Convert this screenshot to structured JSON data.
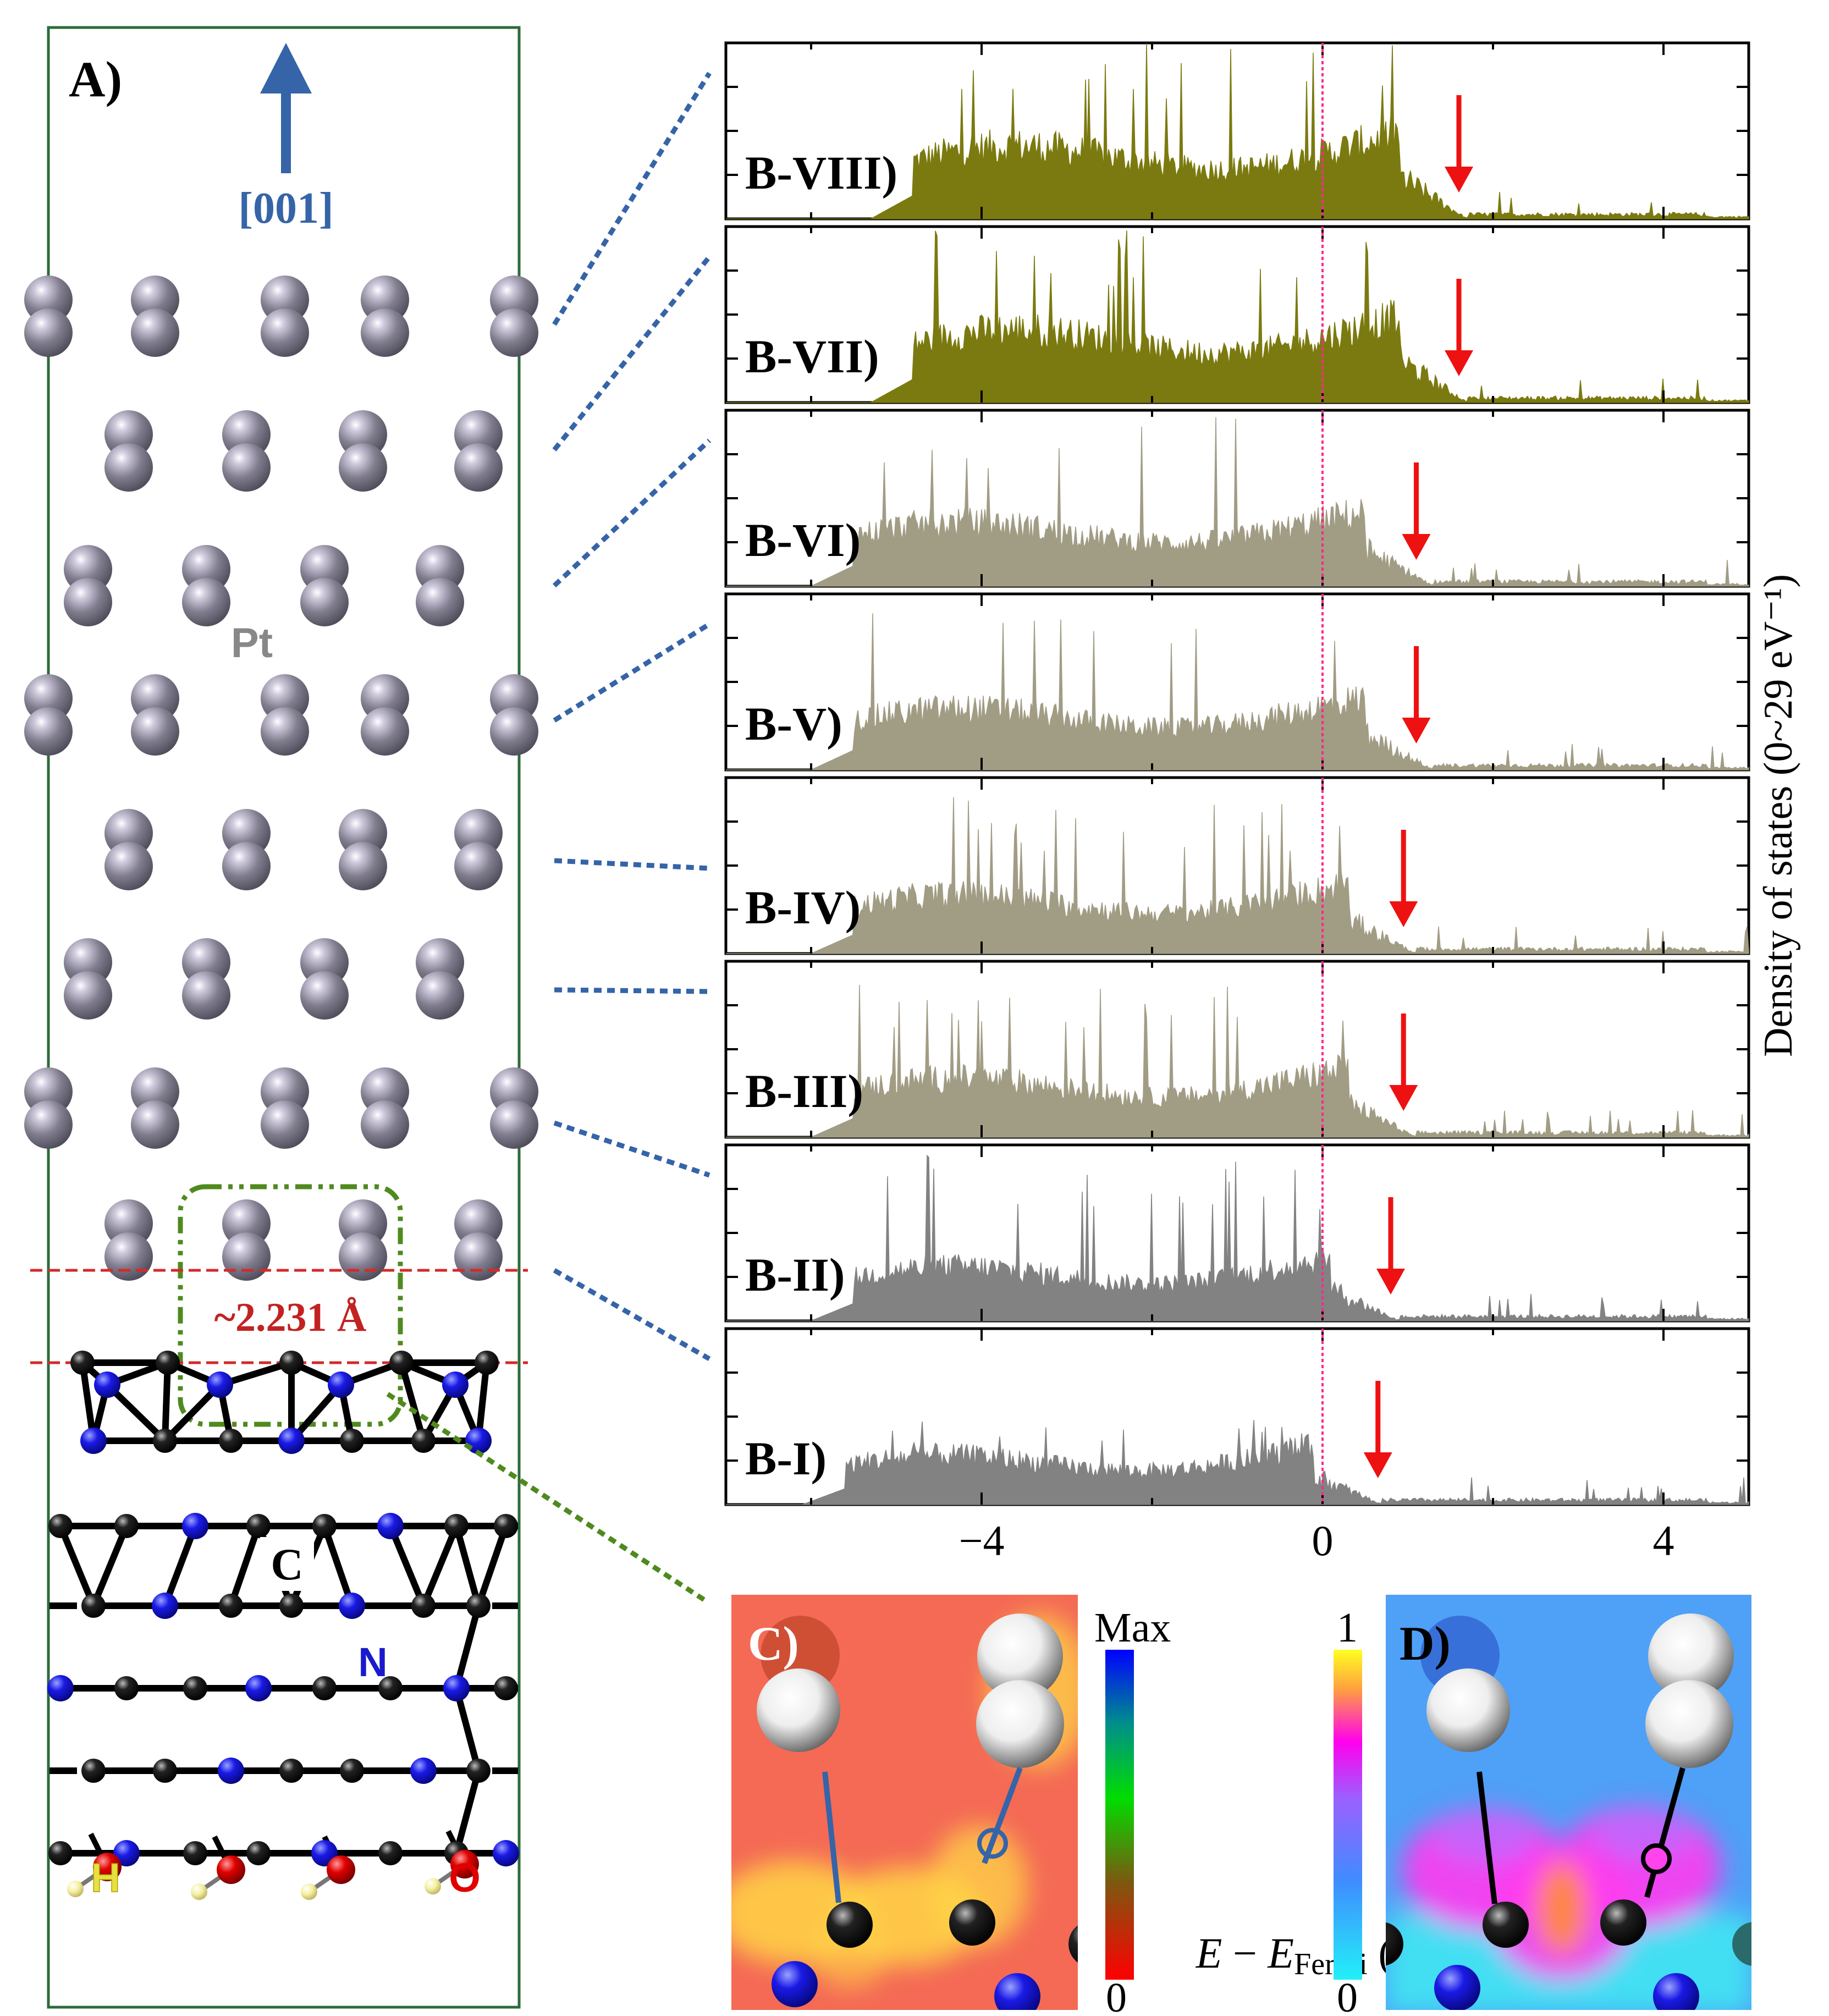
{
  "panel_a": {
    "label": "A)",
    "direction_label": "[001]",
    "element_pt": "Pt",
    "element_c": "C",
    "element_n": "N",
    "element_h": "H",
    "element_o": "O",
    "distance_label": "~2.231 Å",
    "colors": {
      "pt": "#7a7888",
      "carbon": "#111111",
      "nitrogen": "#1515e0",
      "oxygen": "#e00000",
      "hydrogen": "#f4f0a0",
      "arrow": "#3564a8",
      "cell": "#2e6b3a",
      "highlight": "#4f8a1e",
      "distance": "#c22222"
    }
  },
  "panel_b": {
    "chart_data": {
      "type": "area",
      "title": "",
      "xlabel": "E − E_Fermi (eV)",
      "xlabel_parts": {
        "e": "E",
        "minus": " − ",
        "e2": "E",
        "sub": "Fermi",
        "unit": " (eV)"
      },
      "ylabel": "Density of states (0~29 eV⁻¹)",
      "xlim": [
        -7,
        5
      ],
      "ylim": [
        0,
        29
      ],
      "xticks": [
        -4,
        0,
        4
      ],
      "xtick_labels": [
        "−4",
        "0",
        "4"
      ],
      "fermi_line_x": 0,
      "grid": false,
      "series": [
        {
          "name": "B-VIII)",
          "color": "#7b7a10",
          "arrow_x": 1.6,
          "band_start": -4.8,
          "band_end": 1.2,
          "peak": 29,
          "plateau": 15.5
        },
        {
          "name": "B-VII)",
          "color": "#7b7a10",
          "arrow_x": 1.6,
          "band_start": -4.8,
          "band_end": 1.2,
          "peak": 29,
          "plateau": 15.5
        },
        {
          "name": "B-VI)",
          "color": "#a19c84",
          "arrow_x": 1.1,
          "band_start": -5.5,
          "band_end": 0.8,
          "peak": 29,
          "plateau": 13.5
        },
        {
          "name": "B-V)",
          "color": "#a19c84",
          "arrow_x": 1.1,
          "band_start": -5.5,
          "band_end": 0.8,
          "peak": 28,
          "plateau": 13
        },
        {
          "name": "B-IV)",
          "color": "#a19c84",
          "arrow_x": 0.95,
          "band_start": -5.5,
          "band_end": 0.6,
          "peak": 26,
          "plateau": 12.5
        },
        {
          "name": "B-III)",
          "color": "#a19c84",
          "arrow_x": 0.95,
          "band_start": -5.5,
          "band_end": 0.6,
          "peak": 26,
          "plateau": 12.5
        },
        {
          "name": "B-II)",
          "color": "#828282",
          "arrow_x": 0.8,
          "band_start": -5.5,
          "band_end": 0.4,
          "peak": 28,
          "plateau": 11.5
        },
        {
          "name": "B-I)",
          "color": "#828282",
          "arrow_x": 0.65,
          "band_start": -5.6,
          "band_end": 0.2,
          "peak": 14,
          "plateau": 10.5
        }
      ]
    }
  },
  "panel_c": {
    "label": "C)",
    "scale_max": "Max",
    "scale_min": "0"
  },
  "panel_d": {
    "label": "D)",
    "scale_max": "1",
    "scale_min": "0"
  }
}
